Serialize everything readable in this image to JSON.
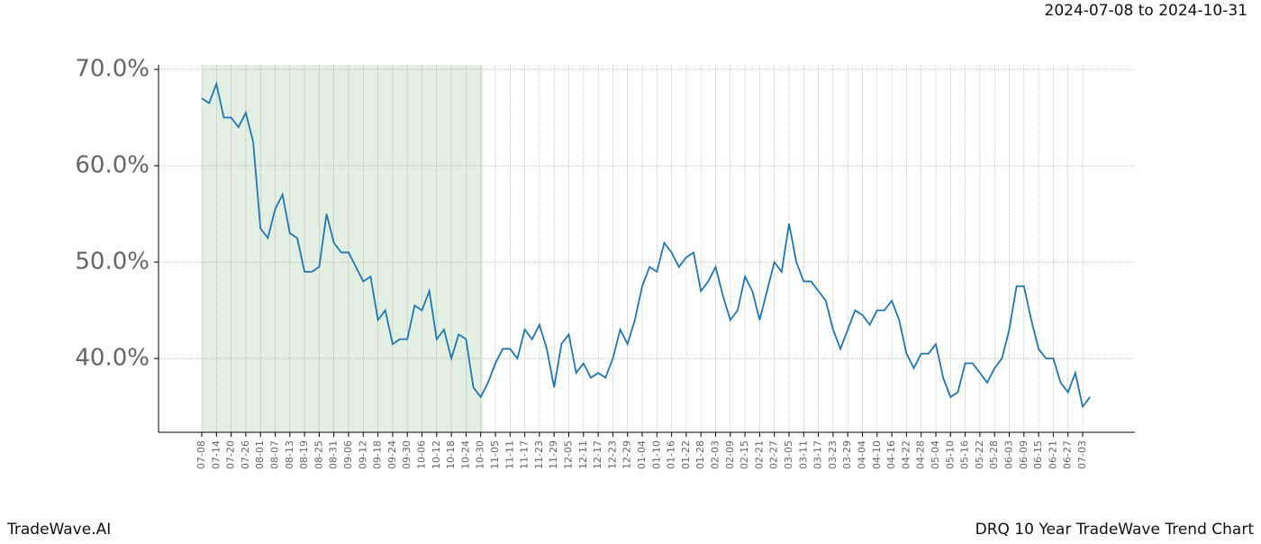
{
  "header": {
    "date_range": "2024-07-08 to 2024-10-31"
  },
  "footer": {
    "left": "TradeWave.AI",
    "right": "DRQ 10 Year TradeWave Trend Chart"
  },
  "chart_data": {
    "type": "line",
    "categories": [
      "07-08",
      null,
      "07-14",
      null,
      "07-20",
      null,
      "07-26",
      null,
      "08-01",
      null,
      "08-07",
      null,
      "08-13",
      null,
      "08-19",
      null,
      "08-25",
      null,
      "08-31",
      null,
      "09-06",
      null,
      "09-12",
      null,
      "09-18",
      null,
      "09-24",
      null,
      "09-30",
      null,
      "10-06",
      null,
      "10-12",
      null,
      "10-18",
      null,
      "10-24",
      null,
      "10-30",
      null,
      "11-05",
      null,
      "11-11",
      null,
      "11-17",
      null,
      "11-23",
      null,
      "11-29",
      null,
      "12-05",
      null,
      "12-11",
      null,
      "12-17",
      null,
      "12-23",
      null,
      "12-29",
      null,
      "01-04",
      null,
      "01-10",
      null,
      "01-16",
      null,
      "01-22",
      null,
      "01-28",
      null,
      "02-03",
      null,
      "02-09",
      null,
      "02-15",
      null,
      "02-21",
      null,
      "02-27",
      null,
      "03-05",
      null,
      "03-11",
      null,
      "03-17",
      null,
      "03-23",
      null,
      "03-29",
      null,
      "04-04",
      null,
      "04-10",
      null,
      "04-16",
      null,
      "04-22",
      null,
      "04-28",
      null,
      "05-04",
      null,
      "05-10",
      null,
      "05-16",
      null,
      "05-22",
      null,
      "05-28",
      null,
      "06-03",
      null,
      "06-09",
      null,
      "06-15",
      null,
      "06-21",
      null,
      "06-27",
      null,
      "07-03",
      null
    ],
    "series": [
      {
        "color": "#1f77b4",
        "values": [
          67.0,
          66.5,
          68.5,
          65,
          65,
          64,
          65.5,
          62.5,
          53.5,
          52.5,
          55.5,
          57,
          53,
          52.5,
          49,
          49,
          49.5,
          55,
          52,
          51,
          51,
          49.5,
          48,
          48.5,
          44,
          45,
          41.5,
          42,
          42,
          45.5,
          45,
          47,
          42,
          43,
          40,
          42.5,
          42,
          37,
          36,
          37.5,
          39.5,
          41,
          41,
          40,
          43,
          42,
          43.5,
          41,
          37,
          41.5,
          42.5,
          38.5,
          39.5,
          38,
          38.5,
          38,
          40,
          43,
          41.5,
          44,
          47.5,
          49.5,
          49,
          52,
          51,
          49.5,
          50.5,
          51,
          47,
          48,
          49.5,
          46.5,
          44,
          45,
          48.5,
          47,
          44,
          47,
          50,
          49,
          54,
          50,
          48,
          48,
          47,
          46,
          43,
          41,
          43,
          45,
          44.5,
          43.5,
          45,
          45,
          46,
          44,
          40.5,
          39,
          40.5,
          40.5,
          41.5,
          38,
          36,
          36.5,
          39.5,
          39.5,
          38.5,
          37.5,
          39,
          40,
          43,
          47.5,
          47.5,
          44,
          41,
          40,
          40,
          37.5,
          36.5,
          38.5,
          35,
          36
        ]
      }
    ],
    "ylim": [
      32.34,
      70.47
    ],
    "yticks": [
      {
        "value": 40,
        "label": "40.0%"
      },
      {
        "value": 50,
        "label": "50.0%"
      },
      {
        "value": 60,
        "label": "60.0%"
      },
      {
        "value": 70,
        "label": "70.0%"
      }
    ],
    "grid": true,
    "highlight": {
      "color": "#e3efe3",
      "from": 0,
      "to": 38.3
    }
  }
}
